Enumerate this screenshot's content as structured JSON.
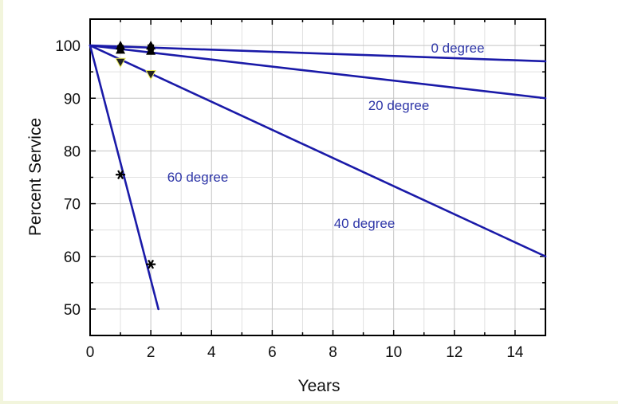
{
  "chart_data": {
    "type": "line",
    "xlabel": "Years",
    "ylabel": "Percent Service",
    "xlim": [
      0,
      15
    ],
    "ylim": [
      45,
      105
    ],
    "xticks": [
      0,
      2,
      4,
      6,
      8,
      10,
      12,
      14
    ],
    "yticks": [
      50,
      60,
      70,
      80,
      90,
      100
    ],
    "grid": true,
    "line_color": "#1a1aa8",
    "label_color": "#2e36a8",
    "series": [
      {
        "name": "0 degree",
        "line": [
          [
            0,
            100
          ],
          [
            15,
            97
          ]
        ],
        "points": [
          [
            1,
            100
          ],
          [
            1,
            99.2
          ],
          [
            2,
            100
          ],
          [
            2,
            99
          ]
        ],
        "marker": "triangle"
      },
      {
        "name": "20 degree",
        "line": [
          [
            0,
            100
          ],
          [
            15,
            90
          ]
        ],
        "points": [
          [
            1,
            99.5
          ],
          [
            2,
            99.6
          ]
        ],
        "marker": "square"
      },
      {
        "name": "40 degree",
        "line": [
          [
            0,
            100
          ],
          [
            15,
            60
          ]
        ],
        "points": [
          [
            1,
            96.8
          ],
          [
            2,
            94.5
          ]
        ],
        "marker": "down-triangle"
      },
      {
        "name": "60 degree",
        "line": [
          [
            0,
            100
          ],
          [
            2.25,
            50
          ]
        ],
        "points": [
          [
            1,
            75.5
          ],
          [
            2,
            58.5
          ]
        ],
        "marker": "star"
      }
    ]
  }
}
